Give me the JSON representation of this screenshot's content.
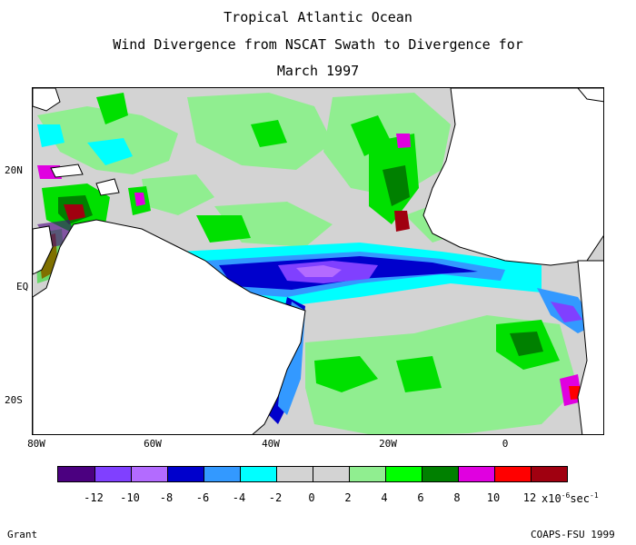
{
  "title": {
    "line1": "Tropical Atlantic Ocean",
    "line2": "Wind Divergence from NSCAT Swath to Divergence for",
    "line3": "March 1997"
  },
  "map": {
    "lon_labels": [
      "80W",
      "60W",
      "40W",
      "20W",
      "0"
    ],
    "lat_labels": [
      "20N",
      "EQ",
      "20S"
    ],
    "land_color": "#ffffff",
    "fill_colors": {
      "light_gray": "#d3d3d3",
      "light_green": "#90ee90",
      "green": "#00e000",
      "dark_green": "#008000",
      "cyan": "#00ffff",
      "sky_blue": "#3399ff",
      "blue": "#0000cc",
      "lavender": "#b36bff",
      "violet": "#8040ff",
      "indigo": "#4b0080",
      "magenta": "#e000e0",
      "red": "#ff0000",
      "dark_red": "#a00010"
    }
  },
  "colorbar": {
    "colors": [
      "#4b0080",
      "#8040ff",
      "#b36bff",
      "#0000cc",
      "#3399ff",
      "#00ffff",
      "#d3d3d3",
      "#d3d3d3",
      "#90ee90",
      "#00ff00",
      "#008000",
      "#e000e0",
      "#ff0000",
      "#a00010"
    ],
    "tick_labels": [
      "-12",
      "-10",
      "-8",
      "-6",
      "-4",
      "-2",
      "0",
      "2",
      "4",
      "6",
      "8",
      "10",
      "12"
    ],
    "unit_prefix": "x10",
    "unit_exp": "-6",
    "unit_suffix": "sec",
    "unit_suffix_exp": "-1"
  },
  "footer": {
    "left": "Grant",
    "right": "COAPS-FSU 1999"
  }
}
